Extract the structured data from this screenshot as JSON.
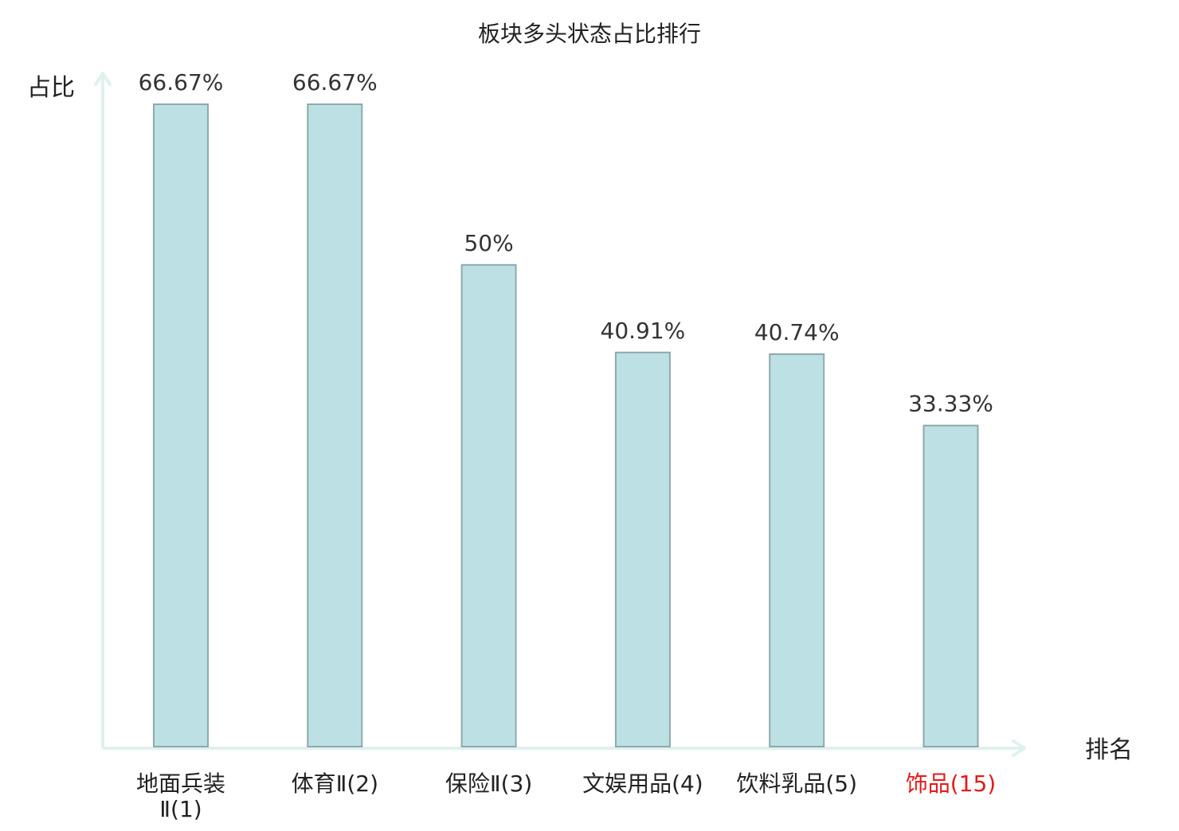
{
  "chart_data": {
    "type": "bar",
    "title": "板块多头状态占比排行",
    "ylabel": "占比",
    "xlabel": "排名",
    "ylim": [
      0,
      66.67
    ],
    "grid": false,
    "categories": [
      {
        "name": "地面兵装Ⅱ",
        "rank": "(1)",
        "lines": [
          "地面兵装",
          "Ⅱ(1)"
        ],
        "highlight": false
      },
      {
        "name": "体育Ⅱ",
        "rank": "(2)",
        "lines": [
          "体育Ⅱ(2)"
        ],
        "highlight": false
      },
      {
        "name": "保险Ⅱ",
        "rank": "(3)",
        "lines": [
          "保险Ⅱ(3)"
        ],
        "highlight": false
      },
      {
        "name": "文娱用品",
        "rank": "(4)",
        "lines": [
          "文娱用品(4)"
        ],
        "highlight": false
      },
      {
        "name": "饮料乳品",
        "rank": "(5)",
        "lines": [
          "饮料乳品(5)"
        ],
        "highlight": false
      },
      {
        "name": "饰品",
        "rank": "(15)",
        "lines": [
          "饰品(15)"
        ],
        "highlight": true
      }
    ],
    "values": [
      66.67,
      66.67,
      50,
      40.91,
      40.74,
      33.33
    ],
    "value_labels": [
      "66.67%",
      "66.67%",
      "50%",
      "40.91%",
      "40.74%",
      "33.33%"
    ]
  },
  "colors": {
    "bar_fill": "#bce0e3",
    "bar_stroke": "#8fa9ab",
    "axis": "#dff1ef",
    "text": "#333333",
    "title": "#222222",
    "highlight": "#e31b1b"
  }
}
